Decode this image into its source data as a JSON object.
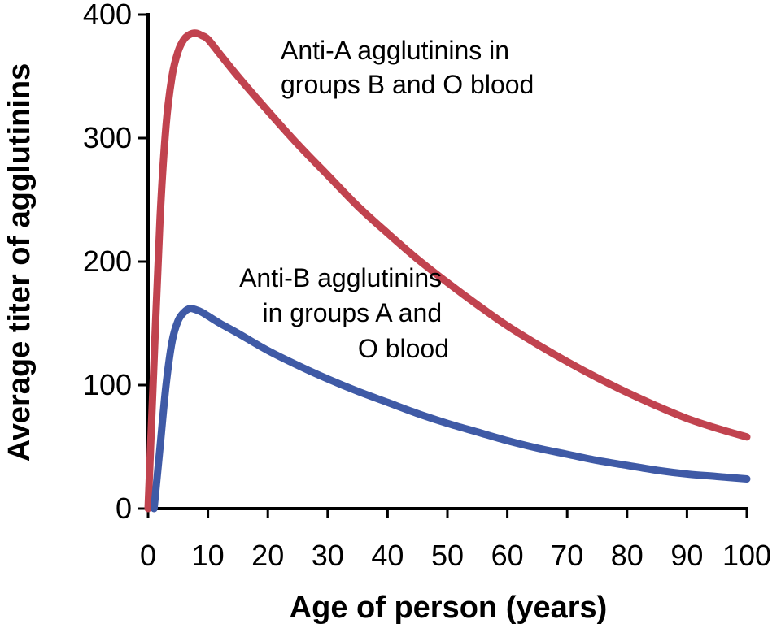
{
  "chart_data": {
    "type": "line",
    "title": "",
    "xlabel": "Age of person (years)",
    "ylabel": "Average titer of agglutinins",
    "xlim": [
      0,
      100
    ],
    "ylim": [
      0,
      400
    ],
    "xticks": [
      0,
      10,
      20,
      30,
      40,
      50,
      60,
      70,
      80,
      90,
      100
    ],
    "yticks": [
      0,
      100,
      200,
      300,
      400
    ],
    "grid": false,
    "legend": "none",
    "series": [
      {
        "name": "Anti-A agglutinins in groups B and O blood",
        "color": "#c1434f",
        "x": [
          0,
          1,
          2,
          3,
          4,
          5,
          6,
          7,
          8,
          9,
          10,
          12,
          15,
          20,
          25,
          30,
          35,
          40,
          45,
          50,
          55,
          60,
          65,
          70,
          75,
          80,
          85,
          90,
          95,
          100
        ],
        "y": [
          0,
          120,
          235,
          310,
          350,
          370,
          380,
          384,
          385,
          383,
          380,
          368,
          350,
          322,
          295,
          270,
          245,
          223,
          202,
          183,
          165,
          148,
          133,
          119,
          106,
          94,
          83,
          73,
          65,
          58
        ]
      },
      {
        "name": "Anti-B agglutinins in groups A and O blood",
        "color": "#3f5aa6",
        "x": [
          1,
          2,
          3,
          4,
          5,
          6,
          7,
          8,
          9,
          10,
          12,
          15,
          20,
          25,
          30,
          35,
          40,
          45,
          50,
          55,
          60,
          65,
          70,
          75,
          80,
          85,
          90,
          95,
          100
        ],
        "y": [
          0,
          50,
          100,
          135,
          152,
          159,
          162,
          161,
          159,
          156,
          150,
          142,
          128,
          116,
          105,
          95,
          86,
          77,
          69,
          62,
          55,
          49,
          44,
          39,
          35,
          31,
          28,
          26,
          24
        ]
      }
    ],
    "annotations": [
      {
        "series": 0,
        "lines": [
          "Anti-A agglutinins in",
          "groups B and O blood"
        ]
      },
      {
        "series": 1,
        "lines": [
          "Anti-B agglutinins",
          "in groups A and",
          "O blood"
        ]
      }
    ]
  }
}
